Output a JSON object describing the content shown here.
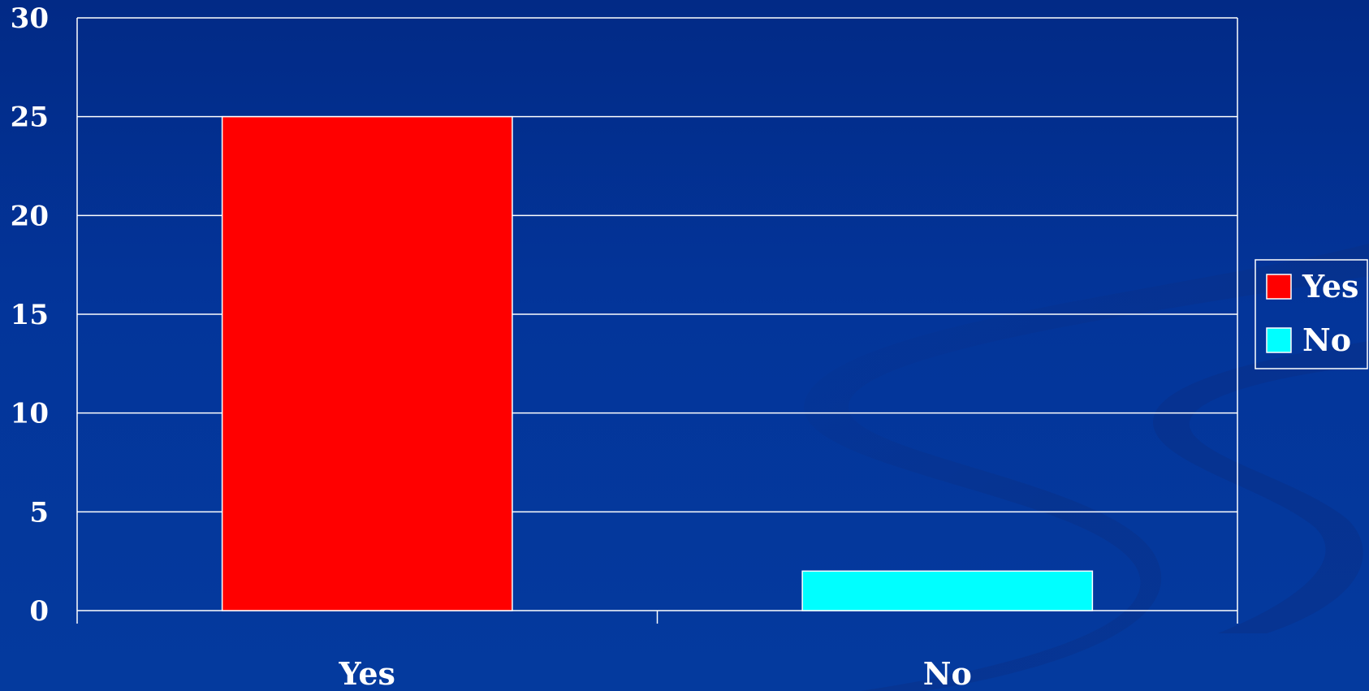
{
  "chart_data": {
    "type": "bar",
    "categories": [
      "Yes",
      "No"
    ],
    "values": [
      25,
      2
    ],
    "colors": [
      "#ff0000",
      "#00ffff"
    ],
    "ylim": [
      0,
      30
    ],
    "yticks": [
      0,
      5,
      10,
      15,
      20,
      25,
      30
    ],
    "grid": true,
    "legend": {
      "placement": "right",
      "entries": [
        {
          "label": "Yes",
          "color": "#ff0000"
        },
        {
          "label": "No",
          "color": "#00ffff"
        }
      ]
    },
    "background_color": "#033399",
    "axis_color": "#ffffff"
  }
}
